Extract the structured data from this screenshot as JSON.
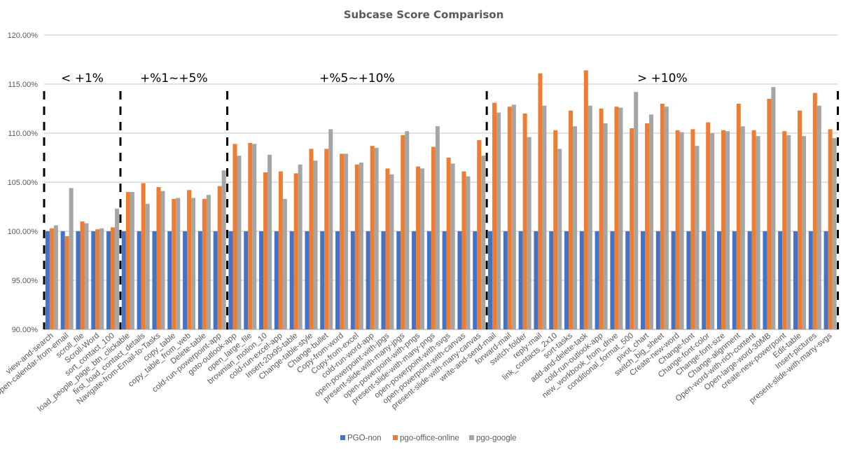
{
  "chart_data": {
    "type": "bar",
    "title": "Subcase Score Comparison",
    "xlabel": "",
    "ylabel": "",
    "ylim": [
      0.9,
      1.2
    ],
    "y_ticks": [
      "90.00%",
      "95.00%",
      "100.00%",
      "105.00%",
      "110.00%",
      "115.00%",
      "120.00%"
    ],
    "y_tick_values": [
      0.9,
      0.95,
      1.0,
      1.05,
      1.1,
      1.15,
      1.2
    ],
    "grid": true,
    "legend_position": "bottom",
    "categories": [
      "view-and-search",
      "open-calendar-from-email",
      "scroll_file",
      "Scroll-Word",
      "sort_contact_100",
      "load_people_page_btn_clickable",
      "first_load_contact_details",
      "Navigate-from-Email-to-Tasks",
      "copy_table",
      "copy_table_from_web",
      "Delete-table",
      "cold-run-powerpoint-app",
      "goto-outlook-app",
      "open_large_file",
      "brownian_motion_10",
      "cold-run-excel-app",
      "Insert-20x95-table",
      "Change-table-style",
      "Change-bullet",
      "Copy-from-word",
      "Copy-from-excel",
      "cold-run-word-app",
      "open-powerpoint-with-jpgs",
      "present-slide-with-many-jpgs",
      "open-powerpoint-with-pngs",
      "present-slide-with-many-pngs",
      "open-powerpoint-with-svgs",
      "open-powerpoint-with-canvas",
      "present-slide-with-many-canvas",
      "write-and-send-mail",
      "forward-mail",
      "switch-folder",
      "reply-mail",
      "link_contacts_2x10",
      "sort-tasks",
      "add-and-delete-task",
      "cold-run-outlook-app",
      "new_workbook_from_drive",
      "conditional_format_500",
      "pivot_chart",
      "switch_big_sheet",
      "Create-new-word",
      "Change-font",
      "Change-font-color",
      "Change-font-size",
      "Change-alignment",
      "Open-word-with-rich-content",
      "Open-large-word-30MB",
      "create-new-powerpoint",
      "Edit-table",
      "Insert-pictures",
      "present-slide-with-many-svgs"
    ],
    "series": [
      {
        "name": "PGO-non",
        "color": "#4472C4",
        "values": [
          1,
          1,
          1,
          1,
          1,
          1,
          1,
          1,
          1,
          1,
          1,
          1,
          1,
          1,
          1,
          1,
          1,
          1,
          1,
          1,
          1,
          1,
          1,
          1,
          1,
          1,
          1,
          1,
          1,
          1,
          1,
          1,
          1,
          1,
          1,
          1,
          1,
          1,
          1,
          1,
          1,
          1,
          1,
          1,
          1,
          1,
          1,
          1,
          1,
          1,
          1,
          1
        ]
      },
      {
        "name": "pgo-office-online",
        "color": "#ED7D31",
        "values": [
          1.003,
          0.995,
          1.01,
          1.002,
          1.004,
          1.04,
          1.049,
          1.045,
          1.033,
          1.042,
          1.033,
          1.046,
          1.089,
          1.09,
          1.06,
          1.061,
          1.059,
          1.084,
          1.084,
          1.079,
          1.068,
          1.087,
          1.064,
          1.098,
          1.066,
          1.086,
          1.075,
          1.061,
          1.093,
          1.131,
          1.127,
          1.12,
          1.161,
          1.103,
          1.123,
          1.164,
          1.125,
          1.127,
          1.105,
          1.11,
          1.13,
          1.103,
          1.104,
          1.111,
          1.103,
          1.13,
          1.103,
          1.135,
          1.102,
          1.123,
          1.141,
          1.104
        ]
      },
      {
        "name": "pgo-google",
        "color": "#A5A5A5",
        "values": [
          1.006,
          1.044,
          1.008,
          1.003,
          1.023,
          1.04,
          1.028,
          1.041,
          1.034,
          1.034,
          1.037,
          1.062,
          1.077,
          1.089,
          1.078,
          1.033,
          1.068,
          1.072,
          1.104,
          1.079,
          1.07,
          1.085,
          1.058,
          1.102,
          1.064,
          1.107,
          1.069,
          1.056,
          1.077,
          1.121,
          1.129,
          1.096,
          1.128,
          1.084,
          1.107,
          1.128,
          1.11,
          1.126,
          1.142,
          1.119,
          1.127,
          1.101,
          1.087,
          1.1,
          1.102,
          1.107,
          1.097,
          1.147,
          1.098,
          1.097,
          1.128,
          1.095
        ]
      }
    ],
    "annotations": [
      {
        "text": "< +1%",
        "start_index": 0,
        "end_index": 4
      },
      {
        "text": "+%1~+5%",
        "start_index": 5,
        "end_index": 11
      },
      {
        "text": "+%5~+10%",
        "start_index": 12,
        "end_index": 28
      },
      {
        "text": "> +10%",
        "start_index": 29,
        "end_index": 51
      }
    ],
    "divider_after_indices": [
      -1,
      4,
      11,
      28,
      51
    ]
  }
}
